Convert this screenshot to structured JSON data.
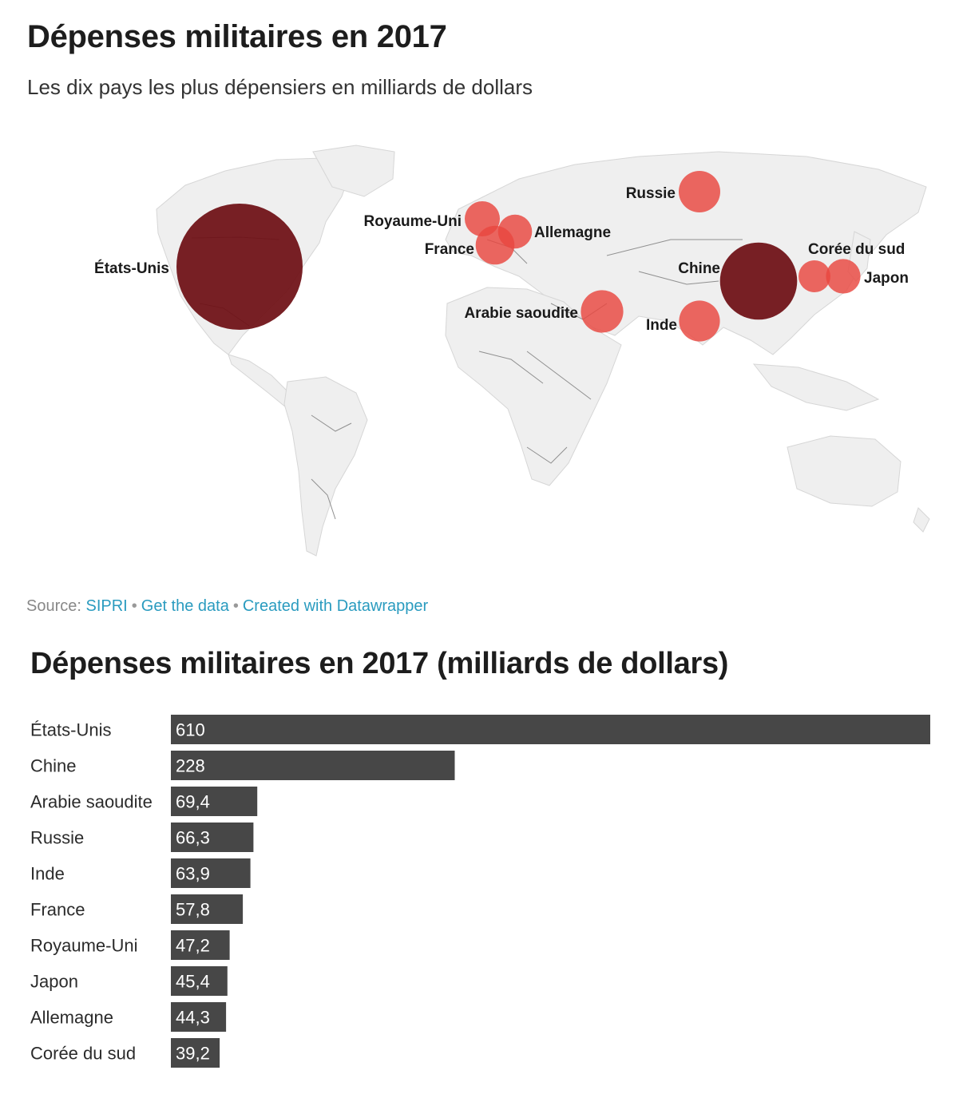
{
  "map": {
    "title": "Dépenses militaires en 2017",
    "subtitle": "Les dix pays les plus dépensiers en milliards de dollars"
  },
  "source": {
    "prefix": "Source:",
    "source_link": "SIPRI",
    "get_data_link": "Get the data",
    "created_link": "Created with Datawrapper"
  },
  "bar": {
    "title": "Dépenses militaires en 2017 (milliards de dollars)"
  },
  "colors": {
    "bubble_large": "#6e0f14",
    "bubble_small": "#e9473f",
    "bar_fill": "#474747",
    "land": "#efefef",
    "link": "#2a9bbf"
  },
  "chart_data": [
    {
      "type": "bubble-map",
      "title": "Dépenses militaires en 2017",
      "subtitle": "Les dix pays les plus dépensiers en milliards de dollars",
      "points": [
        {
          "label": "États-Unis",
          "value": 610
        },
        {
          "label": "Chine",
          "value": 228
        },
        {
          "label": "Arabie saoudite",
          "value": 69.4
        },
        {
          "label": "Russie",
          "value": 66.3
        },
        {
          "label": "Inde",
          "value": 63.9
        },
        {
          "label": "France",
          "value": 57.8
        },
        {
          "label": "Royaume-Uni",
          "value": 47.2
        },
        {
          "label": "Japon",
          "value": 45.4
        },
        {
          "label": "Allemagne",
          "value": 44.3
        },
        {
          "label": "Corée du sud",
          "value": 39.2
        }
      ]
    },
    {
      "type": "bar",
      "orientation": "horizontal",
      "title": "Dépenses militaires en 2017 (milliards de dollars)",
      "categories": [
        "États-Unis",
        "Chine",
        "Arabie saoudite",
        "Russie",
        "Inde",
        "France",
        "Royaume-Uni",
        "Japon",
        "Allemagne",
        "Corée du sud"
      ],
      "values": [
        610,
        228,
        69.4,
        66.3,
        63.9,
        57.8,
        47.2,
        45.4,
        44.3,
        39.2
      ],
      "value_labels": [
        "610",
        "228",
        "69,4",
        "66,3",
        "63,9",
        "57,8",
        "47,2",
        "45,4",
        "44,3",
        "39,2"
      ],
      "xlim": [
        0,
        610
      ],
      "grid": false,
      "legend": "none"
    }
  ]
}
